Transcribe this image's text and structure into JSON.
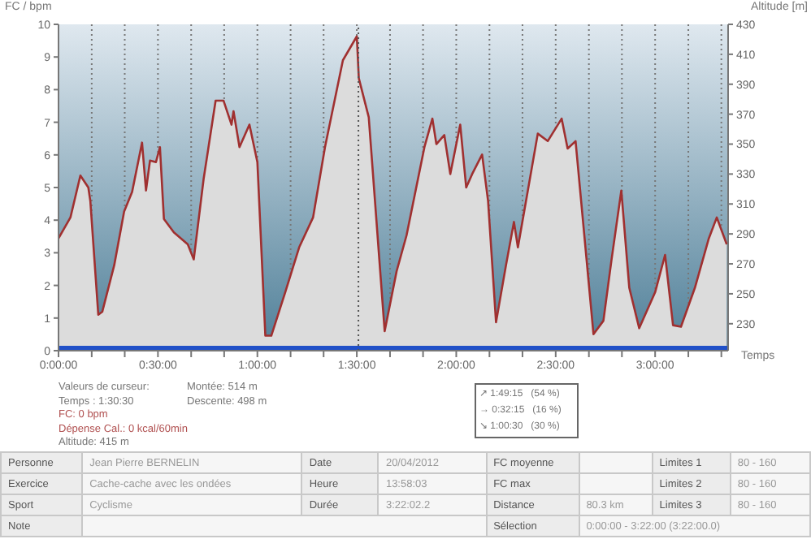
{
  "chart_data": {
    "type": "area",
    "ylabel": "FC / bpm",
    "y2label": "Altitude [m]",
    "xlabel": "Temps",
    "x": [
      0,
      0.06,
      0.11,
      0.15,
      0.16,
      0.2,
      0.22,
      0.28,
      0.33,
      0.37,
      0.42,
      0.44,
      0.46,
      0.49,
      0.51,
      0.53,
      0.58,
      0.65,
      0.68,
      0.73,
      0.79,
      0.83,
      0.87,
      0.88,
      0.91,
      0.96,
      1.0,
      1.04,
      1.07,
      1.14,
      1.21,
      1.28,
      1.34,
      1.43,
      1.5,
      1.51,
      1.56,
      1.64,
      1.7,
      1.75,
      1.84,
      1.88,
      1.9,
      1.94,
      1.97,
      2.02,
      2.05,
      2.08,
      2.13,
      2.16,
      2.2,
      2.25,
      2.29,
      2.31,
      2.41,
      2.46,
      2.53,
      2.56,
      2.6,
      2.63,
      2.69,
      2.74,
      2.78,
      2.83,
      2.87,
      2.92,
      3.0,
      3.05,
      3.09,
      3.13,
      3.2,
      3.27,
      3.31,
      3.36
    ],
    "series": [
      {
        "axis": "y2",
        "color": "#a03030",
        "values": [
          287,
          301,
          329,
          321,
          312,
          236,
          238,
          269,
          305,
          318,
          351,
          319,
          339,
          338,
          348,
          300,
          291,
          283,
          273,
          327,
          379,
          379,
          363,
          372,
          348,
          363,
          338,
          222,
          222,
          251,
          281,
          301,
          348,
          406,
          422,
          394,
          368,
          225,
          265,
          289,
          348,
          367,
          350,
          356,
          330,
          363,
          321,
          330,
          343,
          312,
          231,
          269,
          298,
          281,
          357,
          352,
          367,
          347,
          352,
          309,
          223,
          232,
          272,
          319,
          254,
          227,
          251,
          276,
          229,
          228,
          254,
          287,
          301,
          283
        ]
      }
    ],
    "bands": [
      {
        "axis": "y",
        "from": 0,
        "to": 0.15,
        "color": "#2050c8"
      }
    ],
    "xlim": [
      0,
      3.367
    ],
    "xticks": [
      {
        "value": 0,
        "label": "0:00:00"
      },
      {
        "value": 0.167,
        "label": null
      },
      {
        "value": 0.333,
        "label": null
      },
      {
        "value": 0.5,
        "label": "0:30:00"
      },
      {
        "value": 0.667,
        "label": null
      },
      {
        "value": 0.833,
        "label": null
      },
      {
        "value": 1,
        "label": "1:00:00"
      },
      {
        "value": 1.167,
        "label": null
      },
      {
        "value": 1.333,
        "label": null
      },
      {
        "value": 1.5,
        "label": "1:30:00"
      },
      {
        "value": 1.667,
        "label": null
      },
      {
        "value": 1.833,
        "label": null
      },
      {
        "value": 2,
        "label": "2:00:00"
      },
      {
        "value": 2.167,
        "label": null
      },
      {
        "value": 2.333,
        "label": null
      },
      {
        "value": 2.5,
        "label": "2:30:00"
      },
      {
        "value": 2.667,
        "label": null
      },
      {
        "value": 2.833,
        "label": null
      },
      {
        "value": 3,
        "label": "3:00:00"
      },
      {
        "value": 3.167,
        "label": null
      },
      {
        "value": 3.333,
        "label": null
      }
    ],
    "ylim": [
      0,
      10
    ],
    "yticks": [
      0,
      1,
      2,
      3,
      4,
      5,
      6,
      7,
      8,
      9,
      10
    ],
    "y2lim": [
      212,
      430
    ],
    "y2ticks": [
      230,
      250,
      270,
      290,
      310,
      330,
      350,
      370,
      390,
      410,
      430
    ],
    "grid": "x",
    "legend": false,
    "ref_lines": [
      {
        "axis": "x",
        "value": 1.508,
        "color": "#555555",
        "line_style": "dotted"
      }
    ],
    "annotations": [
      "Valeurs de curseur:",
      "Temps : 1:30:30",
      "FC: 0 bpm",
      "Dépense Cal.: 0 kcal/60min",
      "Altitude: 415 m",
      "Montée: 514 m",
      "Descente: 498 m",
      "↗ 1:49:15   (54 %)",
      "→ 0:32:15   (16 %)",
      "↘ 1:00:30   (30 %)",
      "Personne",
      "Jean Pierre BERNELIN",
      "Date",
      "20/04/2012",
      "FC moyenne",
      "Limites 1",
      "80 - 160",
      "Exercice",
      "Cache-cache avec les ondées",
      "Heure",
      "13:58:03",
      "FC max",
      "Limites 2",
      "80 - 160",
      "Sport",
      "Cyclisme",
      "Durée",
      "3:22:02.2",
      "Distance",
      "80.3 km",
      "Limites 3",
      "80 - 160",
      "Note",
      "Sélection",
      "0:00:00 - 3:22:00 (3:22:00.0)"
    ]
  }
}
